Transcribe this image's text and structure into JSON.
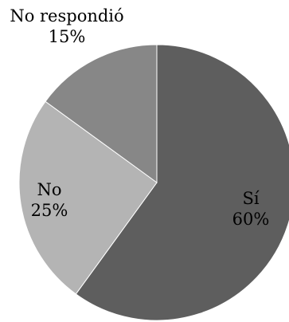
{
  "chart_data": {
    "type": "pie",
    "title": "",
    "legend": "none",
    "start_angle_deg": 0,
    "direction": "clockwise",
    "slices": [
      {
        "label": "Sí",
        "value": 60,
        "value_label": "60%",
        "color": "#5e5e5e"
      },
      {
        "label": "No",
        "value": 25,
        "value_label": "25%",
        "color": "#b4b4b4"
      },
      {
        "label": "No respondió",
        "value": 15,
        "value_label": "15%",
        "color": "#878787"
      }
    ]
  }
}
